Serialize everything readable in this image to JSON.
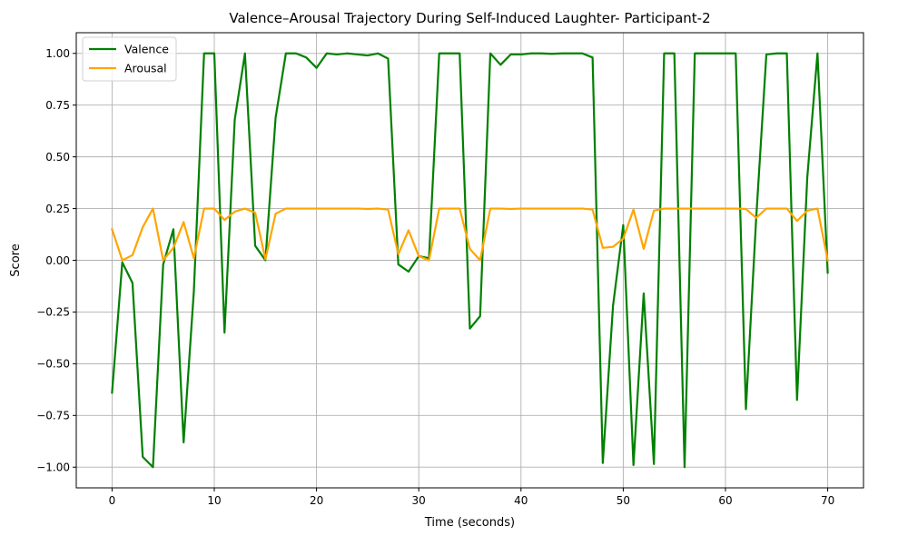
{
  "chart_data": {
    "type": "line",
    "title": "Valence–Arousal Trajectory During Self-Induced Laughter- Participant-2",
    "xlabel": "Time (seconds)",
    "ylabel": "Score",
    "xlim": [
      -3.5,
      73.5
    ],
    "ylim": [
      -1.1,
      1.1
    ],
    "xticks": [
      0,
      10,
      20,
      30,
      40,
      50,
      60,
      70
    ],
    "yticks": [
      -1.0,
      -0.75,
      -0.5,
      -0.25,
      0.0,
      0.25,
      0.5,
      0.75,
      1.0
    ],
    "xtick_labels": [
      "0",
      "10",
      "20",
      "30",
      "40",
      "50",
      "60",
      "70"
    ],
    "ytick_labels": [
      "−1.00",
      "−0.75",
      "−0.50",
      "−0.25",
      "0.00",
      "0.25",
      "0.50",
      "0.75",
      "1.00"
    ],
    "grid": true,
    "legend_position": "top-left",
    "x": [
      0,
      1,
      2,
      3,
      4,
      5,
      6,
      7,
      8,
      9,
      10,
      11,
      12,
      13,
      14,
      15,
      16,
      17,
      18,
      19,
      20,
      21,
      22,
      23,
      24,
      25,
      26,
      27,
      28,
      29,
      30,
      31,
      32,
      33,
      34,
      35,
      36,
      37,
      38,
      39,
      40,
      41,
      42,
      43,
      44,
      45,
      46,
      47,
      48,
      49,
      50,
      51,
      52,
      53,
      54,
      55,
      56,
      57,
      58,
      59,
      60,
      61,
      62,
      63,
      64,
      65,
      66,
      67,
      68,
      69,
      70
    ],
    "series": [
      {
        "name": "Valence",
        "color": "#008000",
        "values": [
          -0.64,
          -0.01,
          -0.11,
          -0.95,
          -1.0,
          -0.02,
          0.15,
          -0.88,
          -0.15,
          1.0,
          1.0,
          -0.35,
          0.68,
          1.0,
          0.07,
          0.0,
          0.69,
          1.0,
          1.0,
          0.98,
          0.93,
          1.0,
          0.995,
          1.0,
          0.995,
          0.99,
          1.0,
          0.975,
          -0.02,
          -0.055,
          0.02,
          0.01,
          1.0,
          1.0,
          1.0,
          -0.33,
          -0.27,
          1.0,
          0.945,
          0.995,
          0.995,
          1.0,
          1.0,
          0.998,
          1.0,
          1.0,
          1.0,
          0.98,
          -0.98,
          -0.22,
          0.17,
          -0.99,
          -0.16,
          -0.985,
          1.0,
          1.0,
          -1.0,
          1.0,
          1.0,
          1.0,
          1.0,
          1.0,
          -0.72,
          0.2,
          0.995,
          1.0,
          1.0,
          -0.675,
          0.4,
          1.0,
          -0.06
        ]
      },
      {
        "name": "Arousal",
        "color": "#FFA500",
        "values": [
          0.15,
          0.0,
          0.025,
          0.16,
          0.25,
          0.0,
          0.06,
          0.185,
          0.01,
          0.25,
          0.25,
          0.195,
          0.235,
          0.25,
          0.23,
          0.005,
          0.225,
          0.25,
          0.25,
          0.25,
          0.25,
          0.25,
          0.25,
          0.25,
          0.25,
          0.248,
          0.25,
          0.245,
          0.03,
          0.145,
          0.02,
          0.0,
          0.25,
          0.25,
          0.25,
          0.055,
          0.0,
          0.25,
          0.25,
          0.248,
          0.25,
          0.25,
          0.25,
          0.25,
          0.25,
          0.25,
          0.25,
          0.245,
          0.06,
          0.065,
          0.105,
          0.245,
          0.055,
          0.24,
          0.25,
          0.25,
          0.25,
          0.25,
          0.25,
          0.25,
          0.25,
          0.25,
          0.248,
          0.205,
          0.25,
          0.25,
          0.25,
          0.19,
          0.24,
          0.25,
          0.0
        ]
      }
    ]
  }
}
